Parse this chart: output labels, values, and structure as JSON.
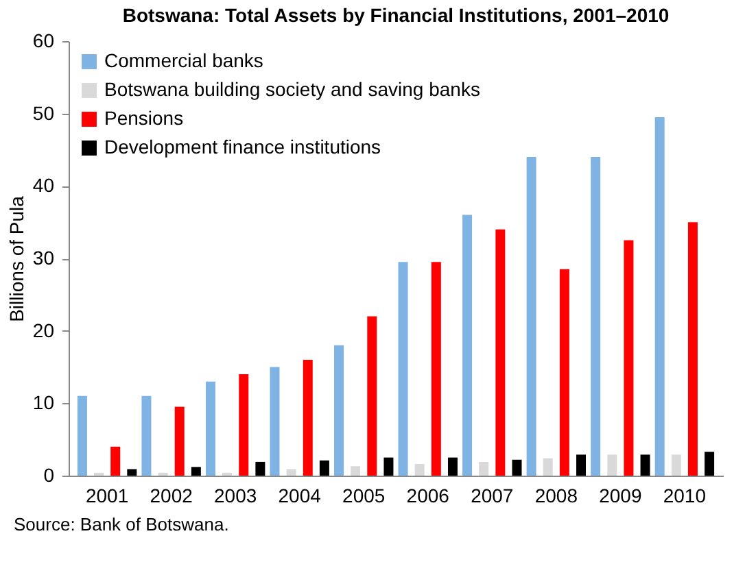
{
  "chart_data": {
    "type": "bar",
    "title": "Botswana: Total Assets by Financial Institutions, 2001–2010",
    "ylabel": "Billions of Pula",
    "categories": [
      "2001",
      "2002",
      "2003",
      "2004",
      "2005",
      "2006",
      "2007",
      "2008",
      "2009",
      "2010"
    ],
    "series": [
      {
        "name": "Commercial banks",
        "color": "#7eb3e4",
        "values": [
          11,
          11,
          13,
          15,
          18,
          29.5,
          36,
          44,
          44,
          49.5
        ]
      },
      {
        "name": "Botswana building society and saving banks",
        "color": "#d9d9d9",
        "values": [
          0.4,
          0.4,
          0.4,
          0.9,
          1.3,
          1.6,
          1.9,
          2.4,
          2.9,
          2.9
        ]
      },
      {
        "name": "Pensions",
        "color": "#ff0000",
        "values": [
          4,
          9.5,
          14,
          16,
          22,
          29.5,
          34,
          28.5,
          32.5,
          35
        ]
      },
      {
        "name": "Development finance institutions",
        "color": "#000000",
        "values": [
          0.9,
          1.2,
          1.9,
          2.1,
          2.5,
          2.5,
          2.2,
          2.9,
          2.9,
          3.3
        ]
      }
    ],
    "ylim": [
      0,
      60
    ],
    "yticks": [
      0,
      10,
      20,
      30,
      40,
      50,
      60
    ],
    "grid": false,
    "legend": "top left",
    "annotations": [
      "Source: Bank of Botswana."
    ]
  }
}
